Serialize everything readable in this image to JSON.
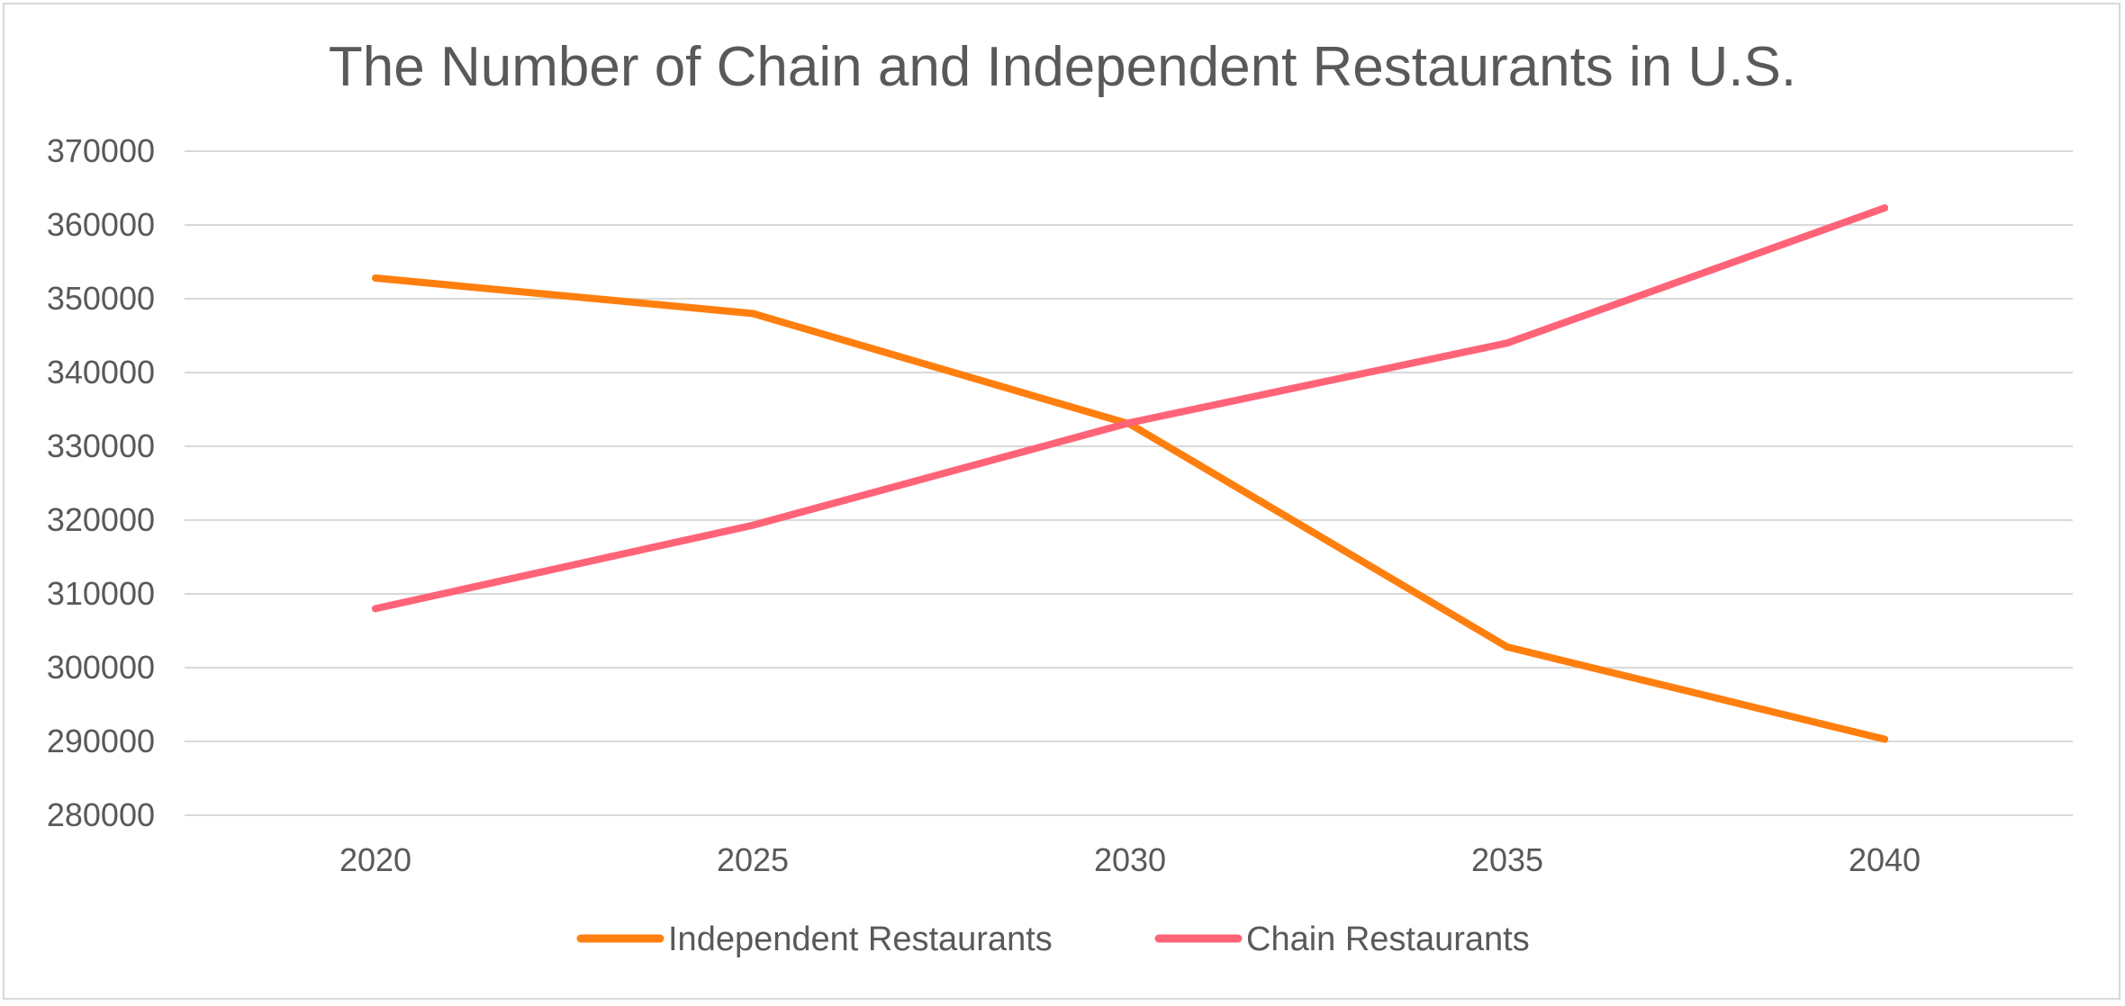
{
  "chart_data": {
    "type": "line",
    "title": "The Number of Chain and Independent Restaurants in U.S.",
    "xlabel": "",
    "ylabel": "",
    "categories": [
      "2020",
      "2025",
      "2030",
      "2035",
      "2040"
    ],
    "ylim": [
      280000,
      370000
    ],
    "yticks": [
      "280000",
      "290000",
      "300000",
      "310000",
      "320000",
      "330000",
      "340000",
      "350000",
      "360000",
      "370000"
    ],
    "grid": true,
    "legend_position": "bottom",
    "series": [
      {
        "name": "Independent Restaurants",
        "color": "#ff7f0e",
        "values": [
          352800,
          348000,
          333000,
          302800,
          290300
        ]
      },
      {
        "name": "Chain Restaurants",
        "color": "#ff6378",
        "values": [
          308000,
          319300,
          333200,
          344000,
          362300
        ]
      }
    ]
  }
}
